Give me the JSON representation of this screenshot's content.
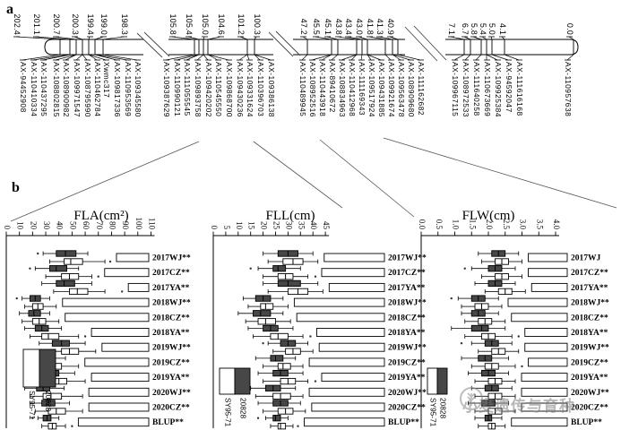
{
  "panel_a": {
    "label": "a",
    "segments": [
      {
        "positions": [
          "202.4",
          "201.1",
          "200.7",
          "200.3",
          "199.4",
          "199.0",
          "198.3"
        ],
        "markers": [
          "AX-94452908",
          "AX-110410334",
          "AX-110437295",
          "AX-108802815",
          "AX-108900982",
          "AX-109971547",
          "AX-108795990",
          "AX-110462784",
          "Xwmc317",
          "AX-109817336",
          "AX-110953569",
          "AX-109345580"
        ]
      },
      {
        "positions": [
          "105.8",
          "105.4",
          "105.0",
          "104.6",
          "101.2",
          "100.3"
        ],
        "markers": [
          "AX-109387629",
          "AX-110990121",
          "AX-111055545",
          "AX-109893758",
          "AX-109420202",
          "AX-110545550",
          "AX-109868700",
          "AX-109430236",
          "AX-109331624",
          "AX-110396703",
          "AX-109386138"
        ]
      },
      {
        "positions": [
          "47.2",
          "45.5",
          "45.1",
          "43.8",
          "43.4",
          "43.0",
          "41.8",
          "41.3",
          "40.9"
        ],
        "markers": [
          "AX-110489945",
          "AX-108952516",
          "AX-110443918",
          "AX-89410672",
          "AX-108834963",
          "AX-110412968",
          "AX-111169343",
          "AX-109517924",
          "AX-109431885",
          "AX-109921674",
          "AX-109563478",
          "AX-108909680",
          "AX-111162682"
        ]
      },
      {
        "positions": [
          "7.1",
          "6.7",
          "5.8",
          "5.4",
          "5.0",
          "4.1",
          "0.0"
        ],
        "markers": [
          "AX-109967115",
          "AX-108972533",
          "AX-111640258",
          "AX-110673669",
          "AX-109925384",
          "AX-94592047",
          "AX-111616168",
          "AX-110957638"
        ]
      }
    ]
  },
  "panel_b": {
    "label": "b",
    "legend": {
      "filled": "20828",
      "open": "SY95-71"
    }
  },
  "chart_data": [
    {
      "type": "boxplot",
      "orientation": "horizontal",
      "title": "FLA(cm²)",
      "xlim": [
        0,
        110
      ],
      "tick_values": [
        0,
        10,
        20,
        30,
        40,
        50,
        60,
        70,
        80,
        90,
        100,
        110
      ],
      "tick_labels": [
        "0",
        "10",
        "20",
        "30",
        "40",
        "50",
        "60",
        "70",
        "80",
        "90",
        "100",
        "110"
      ],
      "series": [
        "20828",
        "SY95-71"
      ],
      "rows": [
        {
          "label": "2017WJ**",
          "p1": [
            28,
            38,
            45,
            53,
            62
          ],
          "p2": [
            33,
            44,
            49,
            58,
            75
          ],
          "o1": [
            24
          ],
          "o2": [
            79
          ]
        },
        {
          "label": "2017CZ**",
          "p1": [
            22,
            33,
            38,
            46,
            55
          ],
          "p2": [
            30,
            42,
            48,
            55,
            65
          ],
          "o1": [
            18
          ],
          "o2": [
            70
          ]
        },
        {
          "label": "2017YA**",
          "p1": [
            27,
            38,
            44,
            52,
            65
          ],
          "p2": [
            36,
            48,
            54,
            62,
            75
          ],
          "o1": [],
          "o2": [
            88
          ]
        },
        {
          "label": "2018WJ**",
          "p1": [
            12,
            18,
            22,
            26,
            33
          ],
          "p2": [
            14,
            20,
            24,
            28,
            38
          ],
          "o1": [
            8
          ],
          "o2": []
        },
        {
          "label": "2018CZ**",
          "p1": [
            10,
            17,
            21,
            26,
            33
          ],
          "p2": [
            12,
            20,
            25,
            30,
            40
          ],
          "o1": [],
          "o2": []
        },
        {
          "label": "2018YA**",
          "p1": [
            14,
            22,
            27,
            32,
            42
          ],
          "p2": [
            18,
            27,
            32,
            40,
            55
          ],
          "o1": [],
          "o2": [
            60
          ]
        },
        {
          "label": "2019WJ**",
          "p1": [
            25,
            35,
            42,
            48,
            60
          ],
          "p2": [
            30,
            42,
            48,
            55,
            68
          ],
          "o1": [],
          "o2": []
        },
        {
          "label": "2019CZ**",
          "p1": [
            15,
            25,
            30,
            36,
            45
          ],
          "p2": [
            20,
            30,
            36,
            42,
            55
          ],
          "o1": [],
          "o2": []
        },
        {
          "label": "2019YA**",
          "p1": [
            18,
            28,
            34,
            40,
            52
          ],
          "p2": [
            22,
            33,
            40,
            46,
            60
          ],
          "o1": [],
          "o2": []
        },
        {
          "label": "2020WJ**",
          "p1": [
            14,
            23,
            28,
            33,
            44
          ],
          "p2": [
            18,
            28,
            34,
            42,
            58
          ],
          "o1": [],
          "o2": []
        },
        {
          "label": "2020CZ**",
          "p1": [
            18,
            27,
            32,
            37,
            48
          ],
          "p2": [
            22,
            32,
            38,
            45,
            58
          ],
          "o1": [],
          "o2": []
        },
        {
          "label": "BLUP**",
          "p1": [
            24,
            28,
            31,
            34,
            40
          ],
          "p2": [
            27,
            32,
            35,
            38,
            45
          ],
          "o1": [
            20
          ],
          "o2": [
            50
          ]
        }
      ]
    },
    {
      "type": "boxplot",
      "orientation": "horizontal",
      "title": "FLL(cm)",
      "xlim": [
        0,
        45
      ],
      "tick_values": [
        0,
        5,
        10,
        15,
        20,
        25,
        30,
        35,
        40,
        45
      ],
      "tick_labels": [
        "0",
        "5",
        "10",
        "15",
        "20",
        "25",
        "30",
        "35",
        "40",
        "45"
      ],
      "series": [
        "20828",
        "SY95-71"
      ],
      "rows": [
        {
          "label": "2017WJ**",
          "p1": [
            20,
            26,
            30,
            34,
            40
          ],
          "p2": [
            22,
            28,
            32,
            36,
            42
          ],
          "o1": [],
          "o2": []
        },
        {
          "label": "2017CZ**",
          "p1": [
            18,
            24,
            26,
            29,
            35
          ],
          "p2": [
            20,
            26,
            29,
            32,
            38
          ],
          "o1": [
            15
          ],
          "o2": [
            41
          ]
        },
        {
          "label": "2017YA**",
          "p1": [
            20,
            26,
            30,
            35,
            42
          ],
          "p2": [
            22,
            30,
            34,
            38,
            44
          ],
          "o1": [],
          "o2": []
        },
        {
          "label": "2018WJ**",
          "p1": [
            12,
            17,
            20,
            23,
            28
          ],
          "p2": [
            14,
            19,
            21,
            24,
            30
          ],
          "o1": [],
          "o2": []
        },
        {
          "label": "2018CZ**",
          "p1": [
            10,
            16,
            19,
            23,
            28
          ],
          "p2": [
            13,
            18,
            21,
            25,
            31
          ],
          "o1": [],
          "o2": []
        },
        {
          "label": "2018YA**",
          "p1": [
            14,
            20,
            23,
            26,
            32
          ],
          "p2": [
            16,
            23,
            26,
            30,
            36
          ],
          "o1": [],
          "o2": [
            39
          ]
        },
        {
          "label": "2019WJ**",
          "p1": [
            22,
            27,
            30,
            33,
            38
          ],
          "p2": [
            24,
            29,
            32,
            35,
            40
          ],
          "o1": [
            20
          ],
          "o2": []
        },
        {
          "label": "2019CZ**",
          "p1": [
            17,
            23,
            25,
            28,
            33
          ],
          "p2": [
            20,
            26,
            28,
            31,
            36
          ],
          "o1": [],
          "o2": []
        },
        {
          "label": "2019YA**",
          "p1": [
            18,
            24,
            27,
            30,
            36
          ],
          "p2": [
            20,
            27,
            30,
            33,
            38
          ],
          "o1": [],
          "o2": [
            41
          ]
        },
        {
          "label": "2020WJ**",
          "p1": [
            15,
            21,
            24,
            27,
            33
          ],
          "p2": [
            17,
            24,
            27,
            31,
            36
          ],
          "o1": [],
          "o2": []
        },
        {
          "label": "2020CZ**",
          "p1": [
            18,
            24,
            27,
            30,
            35
          ],
          "p2": [
            20,
            26,
            29,
            32,
            37
          ],
          "o1": [],
          "o2": []
        },
        {
          "label": "BLUP**",
          "p1": [
            21,
            24,
            25,
            27,
            30
          ],
          "p2": [
            23,
            26,
            27,
            29,
            32
          ],
          "o1": [
            18
          ],
          "o2": [
            34
          ]
        }
      ]
    },
    {
      "type": "boxplot",
      "orientation": "horizontal",
      "title": "FLW(cm)",
      "xlim": [
        0,
        4
      ],
      "tick_values": [
        0,
        0.5,
        1,
        1.5,
        2,
        2.5,
        3,
        3.5,
        4
      ],
      "tick_labels": [
        "0.0",
        "0.5",
        "1.0",
        "1.5",
        "2.0",
        "2.5",
        "3.0",
        "3.5",
        "4.0"
      ],
      "series": [
        "20828",
        "SY95-71"
      ],
      "rows": [
        {
          "label": "2017WJ",
          "p1": [
            1.7,
            2.1,
            2.3,
            2.5,
            2.9
          ],
          "p2": [
            1.8,
            2.2,
            2.4,
            2.6,
            3.0
          ],
          "o1": [],
          "o2": []
        },
        {
          "label": "2017CZ**",
          "p1": [
            1.5,
            2.0,
            2.2,
            2.4,
            2.8
          ],
          "p2": [
            1.8,
            2.2,
            2.4,
            2.6,
            3.0
          ],
          "o1": [
            1.3
          ],
          "o2": []
        },
        {
          "label": "2017YA**",
          "p1": [
            1.6,
            2.0,
            2.2,
            2.4,
            2.8
          ],
          "p2": [
            1.9,
            2.3,
            2.5,
            2.7,
            3.1
          ],
          "o1": [],
          "o2": []
        },
        {
          "label": "2018WJ**",
          "p1": [
            1.1,
            1.5,
            1.7,
            1.9,
            2.3
          ],
          "p2": [
            1.2,
            1.6,
            1.8,
            2.0,
            2.4
          ],
          "o1": [
            0.9
          ],
          "o2": []
        },
        {
          "label": "2018CZ**",
          "p1": [
            1.2,
            1.5,
            1.7,
            1.9,
            2.3
          ],
          "p2": [
            1.3,
            1.7,
            1.9,
            2.1,
            2.5
          ],
          "o1": [],
          "o2": []
        },
        {
          "label": "2018YA**",
          "p1": [
            0.9,
            1.5,
            1.8,
            2.0,
            2.5
          ],
          "p2": [
            1.3,
            1.8,
            2.0,
            2.2,
            2.7
          ],
          "o1": [],
          "o2": [
            2.9
          ]
        },
        {
          "label": "2019WJ**",
          "p1": [
            1.5,
            1.9,
            2.1,
            2.3,
            2.7
          ],
          "p2": [
            1.7,
            2.1,
            2.3,
            2.5,
            2.9
          ],
          "o1": [
            1.2
          ],
          "o2": []
        },
        {
          "label": "2019CZ**",
          "p1": [
            1.2,
            1.7,
            1.9,
            2.1,
            2.6
          ],
          "p2": [
            1.5,
            1.9,
            2.1,
            2.3,
            2.8
          ],
          "o1": [],
          "o2": [
            3.0
          ]
        },
        {
          "label": "2019YA**",
          "p1": [
            1.4,
            1.8,
            2.0,
            2.2,
            2.6
          ],
          "p2": [
            1.6,
            2.0,
            2.2,
            2.4,
            2.8
          ],
          "o1": [],
          "o2": []
        },
        {
          "label": "2020WJ**",
          "p1": [
            1.5,
            1.9,
            2.1,
            2.3,
            2.7
          ],
          "p2": [
            1.6,
            2.0,
            2.2,
            2.4,
            2.8
          ],
          "o1": [],
          "o2": []
        },
        {
          "label": "2020CZ**",
          "p1": [
            1.4,
            1.8,
            2.0,
            2.2,
            2.6
          ],
          "p2": [
            1.6,
            2.0,
            2.2,
            2.4,
            2.8
          ],
          "o1": [],
          "o2": []
        },
        {
          "label": "BLUP**",
          "p1": [
            1.6,
            1.9,
            2.0,
            2.1,
            2.4
          ],
          "p2": [
            1.7,
            2.0,
            2.1,
            2.2,
            2.5
          ],
          "o1": [],
          "o2": []
        }
      ]
    }
  ],
  "watermark": {
    "text": "小麦遗传与育种"
  }
}
